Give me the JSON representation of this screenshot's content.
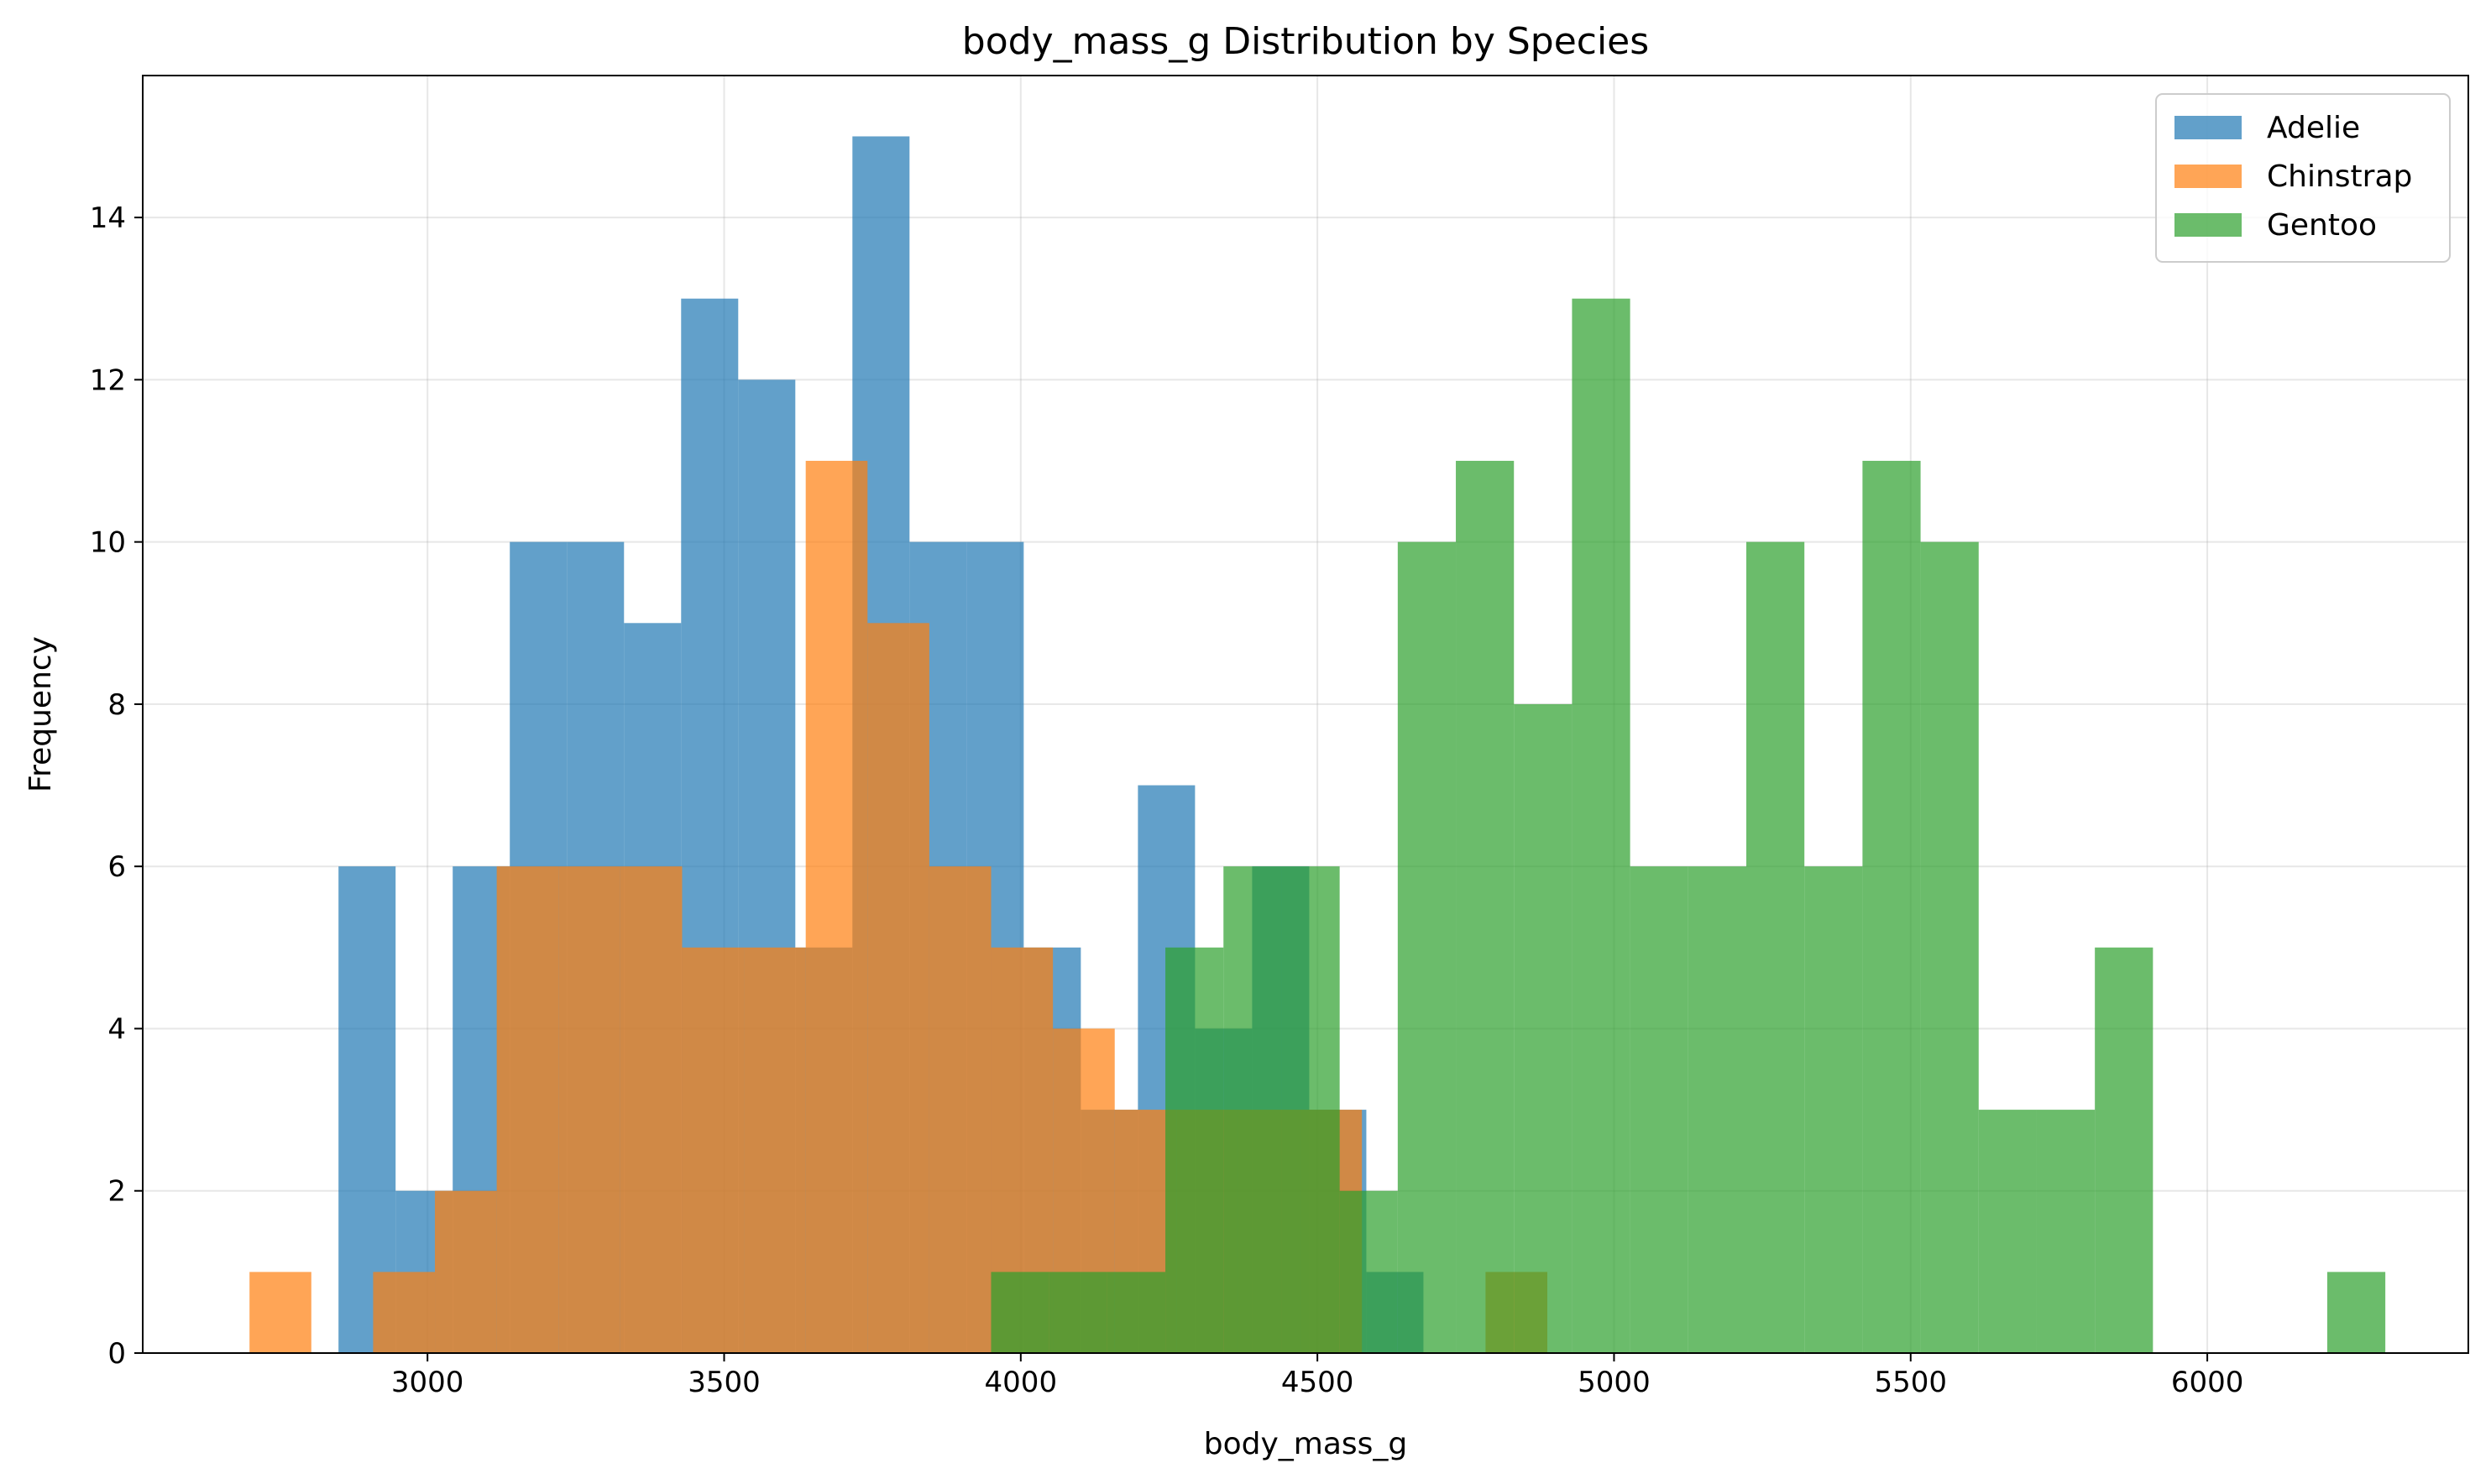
{
  "chart_data": {
    "type": "bar",
    "title": "body_mass_g Distribution by Species",
    "xlabel": "body_mass_g",
    "ylabel": "Frequency",
    "xlim": [
      2520,
      6440
    ],
    "ylim": [
      0,
      15.75
    ],
    "xticks": [
      3000,
      3500,
      4000,
      4500,
      5000,
      5500,
      6000
    ],
    "yticks": [
      0,
      2,
      4,
      6,
      8,
      10,
      12,
      14
    ],
    "grid": true,
    "legend_position": "top-right",
    "bar_alpha": 0.7,
    "series": [
      {
        "name": "Adelie",
        "color": "#1f77b4",
        "bin_start": 2850,
        "bin_width": 96.25,
        "counts": [
          6,
          2,
          6,
          10,
          10,
          9,
          13,
          12,
          5,
          15,
          10,
          10,
          5,
          3,
          7,
          4,
          6,
          3,
          1,
          0,
          0,
          0,
          0,
          0
        ]
      },
      {
        "name": "Chinstrap",
        "color": "#ff7f0e",
        "bin_start": 2700,
        "bin_width": 104.17,
        "counts": [
          1,
          0,
          1,
          2,
          6,
          6,
          6,
          5,
          5,
          11,
          9,
          6,
          5,
          4,
          3,
          3,
          3,
          3,
          0,
          0,
          1,
          0,
          0,
          0
        ]
      },
      {
        "name": "Gentoo",
        "color": "#2ca02c",
        "bin_start": 3950,
        "bin_width": 97.92,
        "counts": [
          1,
          1,
          1,
          5,
          6,
          6,
          2,
          10,
          11,
          8,
          13,
          6,
          6,
          10,
          6,
          11,
          10,
          3,
          3,
          5,
          0,
          0,
          0,
          1
        ]
      }
    ]
  }
}
